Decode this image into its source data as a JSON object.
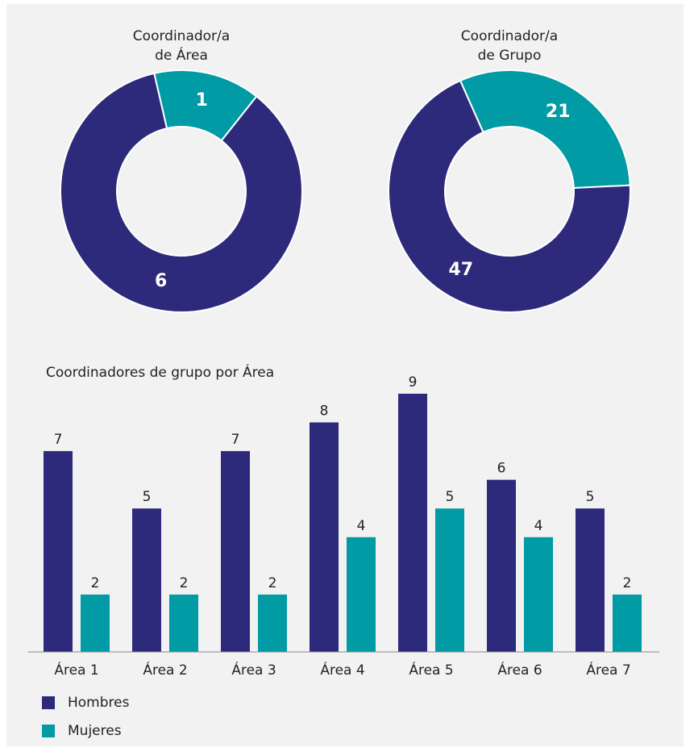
{
  "chart_data": [
    {
      "type": "donut",
      "title": [
        "Coordinador/a",
        "de Área"
      ],
      "categories": [
        "Mujeres",
        "Hombres"
      ],
      "values": [
        1,
        6
      ],
      "colors": [
        "#009ba4",
        "#2d2a7b"
      ]
    },
    {
      "type": "donut",
      "title": [
        "Coordinador/a",
        "de Grupo"
      ],
      "categories": [
        "Mujeres",
        "Hombres"
      ],
      "values": [
        21,
        47
      ],
      "colors": [
        "#009ba4",
        "#2d2a7b"
      ]
    },
    {
      "type": "bar",
      "title": "Coordinadores de grupo por Área",
      "categories": [
        "Área 1",
        "Área 2",
        "Área 3",
        "Área 4",
        "Área 5",
        "Área 6",
        "Área 7"
      ],
      "series": [
        {
          "name": "Hombres",
          "color": "#2d2a7b",
          "values": [
            7,
            5,
            7,
            8,
            9,
            6,
            5
          ]
        },
        {
          "name": "Mujeres",
          "color": "#009ba4",
          "values": [
            2,
            2,
            2,
            4,
            5,
            4,
            2
          ]
        }
      ],
      "ylim": [
        0,
        9
      ],
      "legend": "bottom-left"
    }
  ]
}
